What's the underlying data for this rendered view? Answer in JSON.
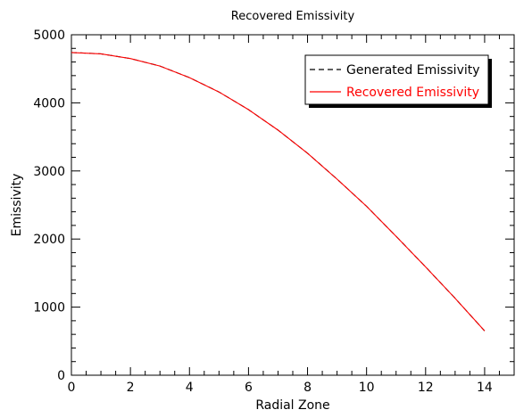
{
  "chart_data": {
    "type": "line",
    "title": "Recovered Emissivity",
    "xlabel": "Radial Zone",
    "ylabel": "Emissivity",
    "xlim": [
      0,
      15
    ],
    "ylim": [
      0,
      5000
    ],
    "grid": false,
    "legend_position": "top-right",
    "x_ticks": [
      "0",
      "2",
      "4",
      "6",
      "8",
      "10",
      "12",
      "14"
    ],
    "y_ticks": [
      "0",
      "1000",
      "2000",
      "3000",
      "4000",
      "5000"
    ],
    "x": [
      0,
      1,
      2,
      3,
      4,
      5,
      6,
      7,
      8,
      9,
      10,
      11,
      12,
      13,
      14
    ],
    "series": [
      {
        "name": "Generated Emissivity",
        "color": "#000000",
        "style": "dashed",
        "values": [
          4740,
          4720,
          4650,
          4540,
          4370,
          4160,
          3900,
          3600,
          3260,
          2880,
          2480,
          2040,
          1590,
          1130,
          650
        ]
      },
      {
        "name": "Recovered Emissivity",
        "color": "#ff0000",
        "style": "solid",
        "values": [
          4740,
          4720,
          4650,
          4540,
          4370,
          4160,
          3900,
          3600,
          3260,
          2880,
          2480,
          2040,
          1590,
          1130,
          650
        ]
      }
    ]
  }
}
